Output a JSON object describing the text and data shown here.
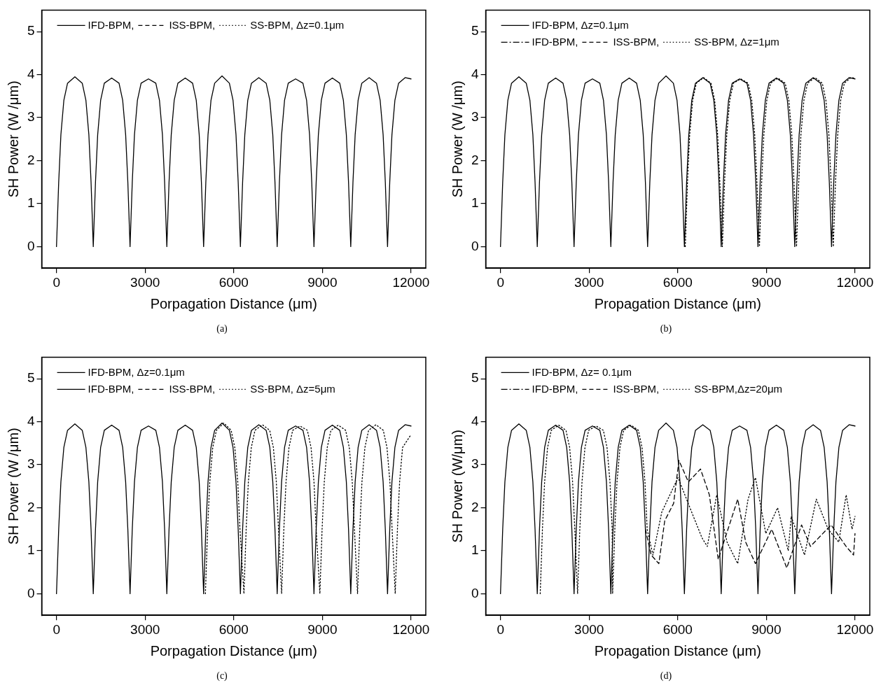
{
  "chart_data": [
    {
      "type": "line",
      "xlabel": "Porpagation Distance (μm)",
      "ylabel": "SH Power (W /μm)",
      "xlim": [
        -500,
        12500
      ],
      "ylim": [
        -0.5,
        5.5
      ],
      "xticks": [
        0,
        3000,
        6000,
        9000,
        12000
      ],
      "yticks": [
        0,
        1,
        2,
        3,
        4,
        5
      ],
      "grid": false,
      "legend": "top",
      "annotations": [
        "(a)"
      ],
      "x": [
        0,
        75,
        149,
        249,
        374,
        623,
        872,
        996,
        1096,
        1170,
        1245,
        1320,
        1394,
        1494,
        1619,
        1868,
        2117,
        2241,
        2341,
        2415,
        2490,
        2565,
        2639,
        2739,
        2864,
        3113,
        3362,
        3486,
        3586,
        3660,
        3735,
        3810,
        3884,
        3984,
        4109,
        4358,
        4607,
        4731,
        4831,
        4905,
        4980,
        5055,
        5129,
        5229,
        5354,
        5603,
        5852,
        5976,
        6076,
        6150,
        6225,
        6300,
        6374,
        6474,
        6599,
        6848,
        7097,
        7221,
        7321,
        7395,
        7470,
        7545,
        7619,
        7719,
        7844,
        8093,
        8342,
        8466,
        8566,
        8640,
        8715,
        8790,
        8864,
        8964,
        9089,
        9338,
        9587,
        9711,
        9811,
        9885,
        9960,
        10035,
        10109,
        10209,
        10334,
        10583,
        10832,
        10956,
        11056,
        11130,
        11205,
        11280,
        11354,
        11454,
        11579,
        11800,
        12000
      ],
      "series": [
        {
          "name": "IFD-BPM,",
          "color": "#000000",
          "line_style": "solid",
          "values": [
            0,
            1.5,
            2.6,
            3.4,
            3.8,
            3.95,
            3.8,
            3.4,
            2.6,
            1.5,
            0,
            1.5,
            2.6,
            3.4,
            3.8,
            3.92,
            3.8,
            3.4,
            2.6,
            1.5,
            0,
            1.5,
            2.6,
            3.4,
            3.8,
            3.9,
            3.8,
            3.4,
            2.6,
            1.5,
            0,
            1.5,
            2.6,
            3.4,
            3.8,
            3.92,
            3.8,
            3.4,
            2.6,
            1.5,
            0,
            1.5,
            2.6,
            3.4,
            3.8,
            3.97,
            3.8,
            3.4,
            2.6,
            1.5,
            0,
            1.5,
            2.6,
            3.4,
            3.8,
            3.93,
            3.8,
            3.4,
            2.6,
            1.5,
            0,
            1.5,
            2.6,
            3.4,
            3.8,
            3.9,
            3.8,
            3.4,
            2.6,
            1.5,
            0,
            1.5,
            2.6,
            3.4,
            3.8,
            3.92,
            3.8,
            3.4,
            2.6,
            1.5,
            0,
            1.5,
            2.6,
            3.4,
            3.8,
            3.93,
            3.8,
            3.4,
            2.6,
            1.5,
            0,
            1.5,
            2.6,
            3.4,
            3.8,
            3.93,
            3.9
          ]
        },
        {
          "name": "ISS-BPM,",
          "color": "#000000",
          "line_style": "dashed",
          "values": [
            null,
            null,
            null,
            null,
            null,
            null,
            null,
            null,
            null,
            null,
            null,
            null,
            null,
            null,
            null,
            null,
            null,
            null,
            null,
            null,
            null,
            null,
            null,
            null,
            null,
            null,
            null,
            null,
            null,
            null,
            null,
            null,
            null,
            null,
            null,
            null,
            null,
            null,
            null,
            null,
            null,
            null,
            null,
            null,
            null,
            null,
            null,
            null,
            null,
            null,
            null,
            null,
            null,
            null,
            null,
            null,
            null,
            null,
            null,
            null,
            null,
            null,
            null,
            null,
            null,
            null,
            null,
            null,
            null,
            null,
            null,
            null,
            null,
            null,
            null,
            null,
            null,
            null,
            null,
            null,
            null,
            null,
            null,
            null,
            null,
            null,
            null,
            null,
            null,
            null,
            null,
            null,
            null,
            null,
            null,
            null,
            null
          ]
        },
        {
          "name": "SS-BPM, Δz=0.1μm",
          "color": "#000000",
          "line_style": "dotted",
          "values": [
            null,
            null,
            null,
            null,
            null,
            null,
            null,
            null,
            null,
            null,
            null,
            null,
            null,
            null,
            null,
            null,
            null,
            null,
            null,
            null,
            null,
            null,
            null,
            null,
            null,
            null,
            null,
            null,
            null,
            null,
            null,
            null,
            null,
            null,
            null,
            null,
            null,
            null,
            null,
            null,
            null,
            null,
            null,
            null,
            null,
            null,
            null,
            null,
            null,
            null,
            null,
            null,
            null,
            null,
            null,
            null,
            null,
            null,
            null,
            null,
            null,
            null,
            null,
            null,
            null,
            null,
            null,
            null,
            null,
            null,
            null,
            null,
            null,
            null,
            null,
            null,
            null,
            null,
            null,
            null,
            null,
            null,
            null,
            null,
            null,
            null,
            null,
            null,
            null,
            null,
            null,
            null,
            null,
            null,
            null,
            null,
            null
          ]
        }
      ]
    },
    {
      "type": "line",
      "xlabel": "Propagation Distance (μm)",
      "ylabel": "SH Power (W /μm)",
      "xlim": [
        -500,
        12500
      ],
      "ylim": [
        -0.5,
        5.5
      ],
      "xticks": [
        0,
        3000,
        6000,
        9000,
        12000
      ],
      "yticks": [
        0,
        1,
        2,
        3,
        4,
        5
      ],
      "grid": false,
      "legend": "top",
      "annotations": [
        "(b)"
      ],
      "x": [
        0,
        75,
        149,
        249,
        374,
        623,
        872,
        996,
        1096,
        1170,
        1245,
        1320,
        1394,
        1494,
        1619,
        1868,
        2117,
        2241,
        2341,
        2415,
        2490,
        2565,
        2639,
        2739,
        2864,
        3113,
        3362,
        3486,
        3586,
        3660,
        3735,
        3810,
        3884,
        3984,
        4109,
        4358,
        4607,
        4731,
        4831,
        4905,
        4980,
        5055,
        5129,
        5229,
        5354,
        5603,
        5852,
        5976,
        6076,
        6150,
        6225,
        6300,
        6374,
        6474,
        6599,
        6848,
        7097,
        7221,
        7321,
        7395,
        7470,
        7545,
        7619,
        7719,
        7844,
        8093,
        8342,
        8466,
        8566,
        8640,
        8715,
        8790,
        8864,
        8964,
        9089,
        9338,
        9587,
        9711,
        9811,
        9885,
        9960,
        10035,
        10109,
        10209,
        10334,
        10583,
        10832,
        10956,
        11056,
        11130,
        11205,
        11280,
        11354,
        11454,
        11579,
        11800,
        12000
      ],
      "series": [
        {
          "name": "IFD-BPM, Δz=0.1μm",
          "color": "#000000",
          "line_style": "solid",
          "values": [
            0,
            1.5,
            2.6,
            3.4,
            3.8,
            3.95,
            3.8,
            3.4,
            2.6,
            1.5,
            0,
            1.5,
            2.6,
            3.4,
            3.8,
            3.92,
            3.8,
            3.4,
            2.6,
            1.5,
            0,
            1.5,
            2.6,
            3.4,
            3.8,
            3.9,
            3.8,
            3.4,
            2.6,
            1.5,
            0,
            1.5,
            2.6,
            3.4,
            3.8,
            3.92,
            3.8,
            3.4,
            2.6,
            1.5,
            0,
            1.5,
            2.6,
            3.4,
            3.8,
            3.97,
            3.8,
            3.4,
            2.6,
            1.5,
            0,
            1.5,
            2.6,
            3.4,
            3.8,
            3.93,
            3.8,
            3.4,
            2.6,
            1.5,
            0,
            1.5,
            2.6,
            3.4,
            3.8,
            3.9,
            3.8,
            3.4,
            2.6,
            1.5,
            0,
            1.5,
            2.6,
            3.4,
            3.8,
            3.92,
            3.8,
            3.4,
            2.6,
            1.5,
            0,
            1.5,
            2.6,
            3.4,
            3.8,
            3.93,
            3.8,
            3.4,
            2.6,
            1.5,
            0,
            1.5,
            2.6,
            3.4,
            3.8,
            3.93,
            3.9
          ]
        },
        {
          "name": "IFD-BPM,",
          "color": "#000000",
          "line_style": "dashdot",
          "values": [
            null,
            null,
            null,
            null,
            null,
            null,
            null,
            null,
            null,
            null,
            null,
            null,
            null,
            null,
            null,
            null,
            null,
            null,
            null,
            null,
            null,
            null,
            null,
            null,
            null,
            null,
            null,
            null,
            null,
            null,
            null,
            null,
            null,
            null,
            null,
            null,
            null,
            null,
            null,
            null,
            null,
            null,
            null,
            null,
            null,
            null,
            null,
            null,
            null,
            null,
            null,
            null,
            null,
            null,
            null,
            null,
            null,
            null,
            null,
            null,
            null,
            null,
            null,
            null,
            null,
            null,
            null,
            null,
            null,
            null,
            null,
            null,
            null,
            null,
            null,
            null,
            null,
            null,
            null,
            null,
            null,
            null,
            null,
            null,
            null,
            null,
            null,
            null,
            null,
            null,
            null,
            null,
            null,
            null,
            null,
            null,
            null
          ]
        },
        {
          "name": "ISS-BPM,",
          "color": "#000000",
          "line_style": "dashed",
          "values": [
            null,
            null,
            null,
            null,
            null,
            null,
            null,
            null,
            null,
            null,
            null,
            null,
            null,
            null,
            null,
            null,
            null,
            null,
            null,
            null,
            null,
            null,
            null,
            null,
            null,
            null,
            null,
            null,
            null,
            null,
            null,
            null,
            null,
            null,
            null,
            null,
            null,
            null,
            null,
            null,
            null,
            null,
            null,
            null,
            null,
            null,
            null,
            null,
            null,
            null,
            null,
            null,
            null,
            null,
            null,
            null,
            null,
            null,
            null,
            null,
            null,
            null,
            null,
            null,
            null,
            null,
            null,
            null,
            null,
            null,
            null,
            null,
            null,
            null,
            null,
            null,
            null,
            null,
            null,
            null,
            null,
            null,
            null,
            null,
            null,
            null,
            null,
            null,
            null,
            null,
            null,
            null,
            null,
            null,
            null,
            null,
            null
          ]
        },
        {
          "name": "SS-BPM, Δz=1μm",
          "color": "#000000",
          "line_style": "dotted",
          "x": [
            6255,
            6330,
            6404,
            6504,
            6629,
            6878,
            7127,
            7251,
            7351,
            7425,
            7510,
            7585,
            7659,
            7759,
            7884,
            8133,
            8382,
            8506,
            8606,
            8680,
            8765,
            8840,
            8914,
            9014,
            9139,
            9388,
            9637,
            9761,
            9861,
            9935,
            10020,
            10095,
            10169,
            10269,
            10394,
            10643,
            10892,
            11016,
            11116,
            11190,
            11265,
            11340,
            11414,
            11514,
            11639,
            11860,
            12000
          ],
          "values": [
            0,
            1.5,
            2.6,
            3.4,
            3.8,
            3.93,
            3.8,
            3.4,
            2.6,
            1.5,
            0,
            1.5,
            2.6,
            3.4,
            3.8,
            3.9,
            3.8,
            3.4,
            2.6,
            1.5,
            0,
            1.5,
            2.6,
            3.4,
            3.8,
            3.92,
            3.8,
            3.4,
            2.6,
            1.5,
            0,
            1.5,
            2.6,
            3.4,
            3.8,
            3.93,
            3.8,
            3.4,
            2.6,
            1.5,
            0,
            1.5,
            2.6,
            3.4,
            3.8,
            3.93,
            3.92
          ]
        }
      ]
    },
    {
      "type": "line",
      "xlabel": "Porpagation Distance (μm)",
      "ylabel": "SH Power (W /μm)",
      "xlim": [
        -500,
        12500
      ],
      "ylim": [
        -0.5,
        5.5
      ],
      "xticks": [
        0,
        3000,
        6000,
        9000,
        12000
      ],
      "yticks": [
        0,
        1,
        2,
        3,
        4,
        5
      ],
      "grid": false,
      "legend": "top",
      "annotations": [
        "(c)"
      ],
      "x": [
        0,
        75,
        149,
        249,
        374,
        623,
        872,
        996,
        1096,
        1170,
        1245,
        1320,
        1394,
        1494,
        1619,
        1868,
        2117,
        2241,
        2341,
        2415,
        2490,
        2565,
        2639,
        2739,
        2864,
        3113,
        3362,
        3486,
        3586,
        3660,
        3735,
        3810,
        3884,
        3984,
        4109,
        4358,
        4607,
        4731,
        4831,
        4905,
        4980,
        5055,
        5129,
        5229,
        5354,
        5603,
        5852,
        5976,
        6076,
        6150,
        6225,
        6300,
        6374,
        6474,
        6599,
        6848,
        7097,
        7221,
        7321,
        7395,
        7470,
        7545,
        7619,
        7719,
        7844,
        8093,
        8342,
        8466,
        8566,
        8640,
        8715,
        8790,
        8864,
        8964,
        9089,
        9338,
        9587,
        9711,
        9811,
        9885,
        9960,
        10035,
        10109,
        10209,
        10334,
        10583,
        10832,
        10956,
        11056,
        11130,
        11205,
        11280,
        11354,
        11454,
        11579,
        11800,
        12000
      ],
      "series": [
        {
          "name": "IFD-BPM, Δz=0.1μm",
          "color": "#000000",
          "line_style": "solid",
          "values": [
            0,
            1.5,
            2.6,
            3.4,
            3.8,
            3.95,
            3.8,
            3.4,
            2.6,
            1.5,
            0,
            1.5,
            2.6,
            3.4,
            3.8,
            3.92,
            3.8,
            3.4,
            2.6,
            1.5,
            0,
            1.5,
            2.6,
            3.4,
            3.8,
            3.9,
            3.8,
            3.4,
            2.6,
            1.5,
            0,
            1.5,
            2.6,
            3.4,
            3.8,
            3.92,
            3.8,
            3.4,
            2.6,
            1.5,
            0,
            1.5,
            2.6,
            3.4,
            3.8,
            3.97,
            3.8,
            3.4,
            2.6,
            1.5,
            0,
            1.5,
            2.6,
            3.4,
            3.8,
            3.93,
            3.8,
            3.4,
            2.6,
            1.5,
            0,
            1.5,
            2.6,
            3.4,
            3.8,
            3.9,
            3.8,
            3.4,
            2.6,
            1.5,
            0,
            1.5,
            2.6,
            3.4,
            3.8,
            3.92,
            3.8,
            3.4,
            2.6,
            1.5,
            0,
            1.5,
            2.6,
            3.4,
            3.8,
            3.93,
            3.8,
            3.4,
            2.6,
            1.5,
            0,
            1.5,
            2.6,
            3.4,
            3.8,
            3.93,
            3.9
          ]
        },
        {
          "name": "IFD-BPM,",
          "color": "#000000",
          "line_style": "solid",
          "values": [
            null,
            null,
            null,
            null,
            null,
            null,
            null,
            null,
            null,
            null,
            null,
            null,
            null,
            null,
            null,
            null,
            null,
            null,
            null,
            null,
            null,
            null,
            null,
            null,
            null,
            null,
            null,
            null,
            null,
            null,
            null,
            null,
            null,
            null,
            null,
            null,
            null,
            null,
            null,
            null,
            null,
            null,
            null,
            null,
            null,
            null,
            null,
            null,
            null,
            null,
            null,
            null,
            null,
            null,
            null,
            null,
            null,
            null,
            null,
            null,
            null,
            null,
            null,
            null,
            null,
            null,
            null,
            null,
            null,
            null,
            null,
            null,
            null,
            null,
            null,
            null,
            null,
            null,
            null,
            null,
            null,
            null,
            null,
            null,
            null,
            null,
            null,
            null,
            null,
            null,
            null,
            null,
            null,
            null,
            null,
            null,
            null
          ]
        },
        {
          "name": "ISS-BPM,",
          "color": "#000000",
          "line_style": "dashed",
          "values": [
            null,
            null,
            null,
            null,
            null,
            null,
            null,
            null,
            null,
            null,
            null,
            null,
            null,
            null,
            null,
            null,
            null,
            null,
            null,
            null,
            null,
            null,
            null,
            null,
            null,
            null,
            null,
            null,
            null,
            null,
            null,
            null,
            null,
            null,
            null,
            null,
            null,
            null,
            null,
            null,
            null,
            null,
            null,
            null,
            null,
            null,
            null,
            null,
            null,
            null,
            null,
            null,
            null,
            null,
            null,
            null,
            null,
            null,
            null,
            null,
            null,
            null,
            null,
            null,
            null,
            null,
            null,
            null,
            null,
            null,
            null,
            null,
            null,
            null,
            null,
            null,
            null,
            null,
            null,
            null,
            null,
            null,
            null,
            null,
            null,
            null,
            null,
            null,
            null,
            null,
            null,
            null,
            null,
            null,
            null,
            null,
            null
          ]
        },
        {
          "name": "SS-BPM, Δz=5μm",
          "color": "#000000",
          "line_style": "dotted",
          "x": [
            5040,
            5115,
            5189,
            5289,
            5414,
            5663,
            5912,
            6036,
            6136,
            6210,
            6345,
            6420,
            6494,
            6594,
            6719,
            6968,
            7217,
            7341,
            7441,
            7515,
            7620,
            7695,
            7769,
            7869,
            7994,
            8243,
            8492,
            8616,
            8716,
            8790,
            8915,
            8990,
            9064,
            9164,
            9289,
            9538,
            9787,
            9911,
            10011,
            10085,
            10190,
            10265,
            10339,
            10439,
            10564,
            10813,
            11062,
            11186,
            11286,
            11360,
            11465,
            11540,
            11614,
            11714,
            12000
          ],
          "values": [
            0,
            1.5,
            2.6,
            3.4,
            3.8,
            3.97,
            3.8,
            3.4,
            2.6,
            1.5,
            0,
            1.5,
            2.6,
            3.4,
            3.8,
            3.93,
            3.8,
            3.4,
            2.6,
            1.5,
            0,
            1.5,
            2.6,
            3.4,
            3.8,
            3.9,
            3.8,
            3.4,
            2.6,
            1.5,
            0,
            1.5,
            2.6,
            3.4,
            3.8,
            3.92,
            3.8,
            3.4,
            2.6,
            1.5,
            0,
            1.5,
            2.6,
            3.4,
            3.8,
            3.93,
            3.8,
            3.4,
            2.6,
            1.5,
            0,
            1.5,
            2.6,
            3.4,
            3.7
          ]
        }
      ]
    },
    {
      "type": "line",
      "xlabel": "Propagation Distance (μm)",
      "ylabel": "SH Power (W/μm)",
      "xlim": [
        -500,
        12500
      ],
      "ylim": [
        -0.5,
        5.5
      ],
      "xticks": [
        0,
        3000,
        6000,
        9000,
        12000
      ],
      "yticks": [
        0,
        1,
        2,
        3,
        4,
        5
      ],
      "grid": false,
      "legend": "top",
      "annotations": [
        "(d)"
      ],
      "x": [
        0,
        75,
        149,
        249,
        374,
        623,
        872,
        996,
        1096,
        1170,
        1245,
        1320,
        1394,
        1494,
        1619,
        1868,
        2117,
        2241,
        2341,
        2415,
        2490,
        2565,
        2639,
        2739,
        2864,
        3113,
        3362,
        3486,
        3586,
        3660,
        3735,
        3810,
        3884,
        3984,
        4109,
        4358,
        4607,
        4731,
        4831,
        4905,
        4980,
        5055,
        5129,
        5229,
        5354,
        5603,
        5852,
        5976,
        6076,
        6150,
        6225,
        6300,
        6374,
        6474,
        6599,
        6848,
        7097,
        7221,
        7321,
        7395,
        7470,
        7545,
        7619,
        7719,
        7844,
        8093,
        8342,
        8466,
        8566,
        8640,
        8715,
        8790,
        8864,
        8964,
        9089,
        9338,
        9587,
        9711,
        9811,
        9885,
        9960,
        10035,
        10109,
        10209,
        10334,
        10583,
        10832,
        10956,
        11056,
        11130,
        11205,
        11280,
        11354,
        11454,
        11579,
        11800,
        12000
      ],
      "series": [
        {
          "name": "IFD-BPM, Δz= 0.1μm",
          "color": "#000000",
          "line_style": "solid",
          "values": [
            0,
            1.5,
            2.6,
            3.4,
            3.8,
            3.95,
            3.8,
            3.4,
            2.6,
            1.5,
            0,
            1.5,
            2.6,
            3.4,
            3.8,
            3.92,
            3.8,
            3.4,
            2.6,
            1.5,
            0,
            1.5,
            2.6,
            3.4,
            3.8,
            3.9,
            3.8,
            3.4,
            2.6,
            1.5,
            0,
            1.5,
            2.6,
            3.4,
            3.8,
            3.92,
            3.8,
            3.4,
            2.6,
            1.5,
            0,
            1.5,
            2.6,
            3.4,
            3.8,
            3.97,
            3.8,
            3.4,
            2.6,
            1.5,
            0,
            1.5,
            2.6,
            3.4,
            3.8,
            3.93,
            3.8,
            3.4,
            2.6,
            1.5,
            0,
            1.5,
            2.6,
            3.4,
            3.8,
            3.9,
            3.8,
            3.4,
            2.6,
            1.5,
            0,
            1.5,
            2.6,
            3.4,
            3.8,
            3.92,
            3.8,
            3.4,
            2.6,
            1.5,
            0,
            1.5,
            2.6,
            3.4,
            3.8,
            3.93,
            3.8,
            3.4,
            2.6,
            1.5,
            0,
            1.5,
            2.6,
            3.4,
            3.8,
            3.93,
            3.9
          ]
        },
        {
          "name": "IFD-BPM,",
          "color": "#000000",
          "line_style": "dashdot",
          "values": [
            null,
            null,
            null,
            null,
            null,
            null,
            null,
            null,
            null,
            null,
            null,
            null,
            null,
            null,
            null,
            null,
            null,
            null,
            null,
            null,
            null,
            null,
            null,
            null,
            null,
            null,
            null,
            null,
            null,
            null,
            null,
            null,
            null,
            null,
            null,
            null,
            null,
            null,
            null,
            null,
            null,
            null,
            null,
            null,
            null,
            null,
            null,
            null,
            null,
            null,
            null,
            null,
            null,
            null,
            null,
            null,
            null,
            null,
            null,
            null,
            null,
            null,
            null,
            null,
            null,
            null,
            null,
            null,
            null,
            null,
            null,
            null,
            null,
            null,
            null,
            null,
            null,
            null,
            null,
            null,
            null,
            null,
            null,
            null,
            null,
            null,
            null,
            null,
            null,
            null,
            null,
            null,
            null,
            null,
            null,
            null,
            null
          ]
        },
        {
          "name": "ISS-BPM,",
          "color": "#000000",
          "line_style": "dashed",
          "x": [
            4905,
            5100,
            5360,
            5560,
            5860,
            6040,
            6360,
            6770,
            7070,
            7370,
            7700,
            8030,
            8300,
            8630,
            9180,
            9690,
            10190,
            10490,
            11190,
            11700,
            11950,
            12000
          ],
          "values": [
            1.5,
            0.9,
            0.7,
            1.7,
            2.1,
            3.1,
            2.6,
            2.9,
            2.3,
            0.8,
            1.5,
            2.2,
            1.2,
            0.7,
            1.5,
            0.6,
            1.6,
            1.1,
            1.6,
            1.1,
            0.9,
            1.4
          ]
        },
        {
          "name": "SS-BPM,Δz=20μm",
          "color": "#000000",
          "line_style": "dotted",
          "x": [
            1345,
            1420,
            1494,
            1594,
            1719,
            1968,
            2217,
            2341,
            2441,
            2515,
            2610,
            2685,
            2759,
            2859,
            2984,
            3233,
            3482,
            3606,
            3706,
            3780,
            3795,
            3870,
            3944,
            4044,
            4169,
            4418,
            4667,
            4791,
            4891,
            4965,
            5160,
            5460,
            6010,
            6470,
            6820,
            7000,
            7320,
            7670,
            8030,
            8380,
            8630,
            8980,
            9380,
            9740,
            9840,
            10290,
            10690,
            11090,
            11450,
            11700,
            11900,
            12000
          ],
          "values": [
            0,
            1.5,
            2.6,
            3.4,
            3.8,
            3.92,
            3.8,
            3.4,
            2.6,
            1.5,
            0,
            1.5,
            2.6,
            3.4,
            3.8,
            3.9,
            3.8,
            3.4,
            2.6,
            1.5,
            0,
            1.5,
            2.6,
            3.4,
            3.8,
            3.92,
            3.8,
            3.4,
            2.6,
            1.5,
            0.9,
            1.9,
            2.7,
            1.9,
            1.3,
            1.1,
            2.3,
            1.2,
            0.7,
            2.2,
            2.7,
            1.4,
            2.0,
            1.0,
            1.8,
            0.9,
            2.2,
            1.5,
            1.2,
            2.3,
            1.5,
            1.8
          ]
        }
      ]
    }
  ]
}
